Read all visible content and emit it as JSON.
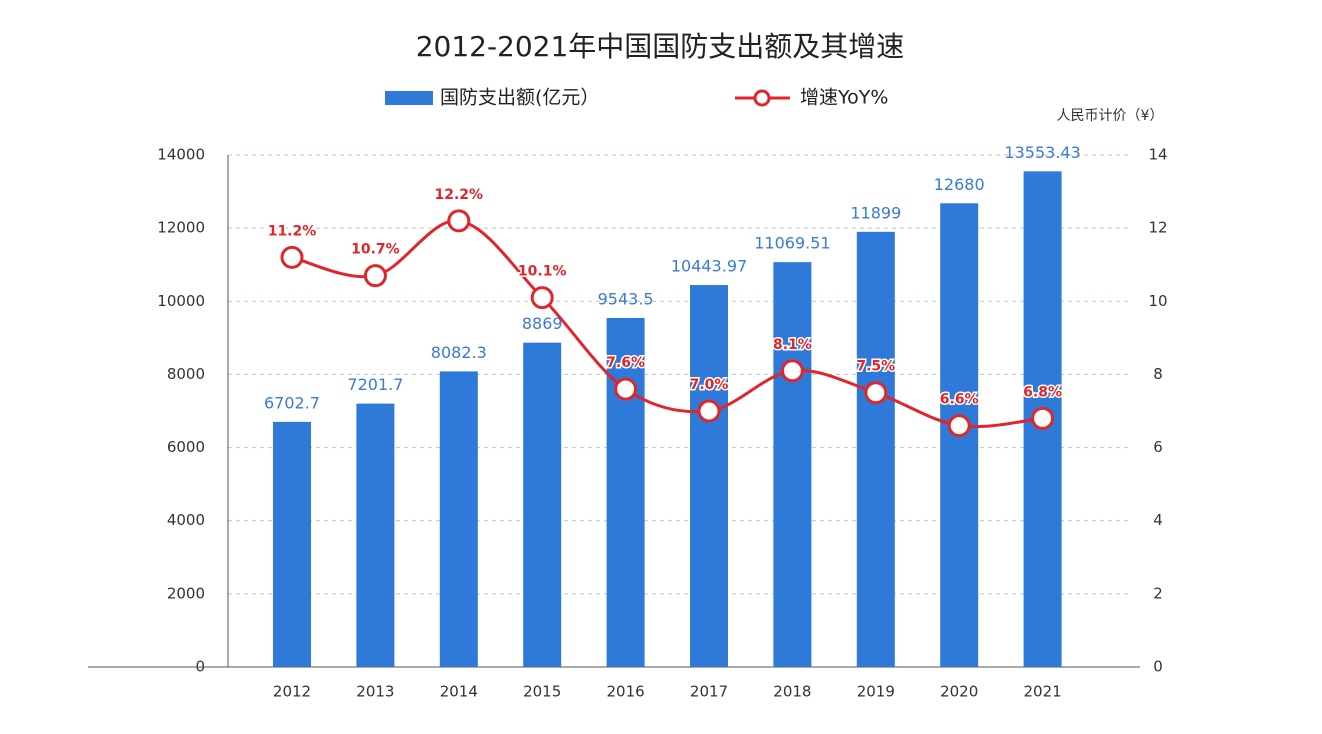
{
  "chart_data": {
    "type": "bar-line",
    "title": "2012-2021年中国国防支出额及其增速",
    "annotation": "人民币计价（¥）",
    "categories": [
      "2012",
      "2013",
      "2014",
      "2015",
      "2016",
      "2017",
      "2018",
      "2019",
      "2020",
      "2021"
    ],
    "series": [
      {
        "name": "国防支出额(亿元）",
        "type": "bar",
        "color": "#2f7ad8",
        "values": [
          6702.7,
          7201.7,
          8082.3,
          8869,
          9543.5,
          10443.97,
          11069.51,
          11899,
          12680,
          13553.43
        ]
      },
      {
        "name": "增速YoY%",
        "type": "line",
        "axis": "y2",
        "color": "#e0262a",
        "values": [
          11.2,
          10.7,
          12.2,
          10.1,
          7.6,
          7.0,
          8.1,
          7.5,
          6.6,
          6.8
        ],
        "value_labels": [
          "11.2%",
          "10.7%",
          "12.2%",
          "10.1%",
          "7.6%",
          "7.0%",
          "8.1%",
          "7.5%",
          "6.6%",
          "6.8%"
        ]
      }
    ],
    "ylim": [
      0,
      14000
    ],
    "yticks": [
      0,
      2000,
      4000,
      6000,
      8000,
      10000,
      12000,
      14000
    ],
    "y2lim": [
      0,
      14
    ],
    "y2ticks": [
      0,
      2,
      4,
      6,
      8,
      10,
      12,
      14
    ],
    "grid": true
  }
}
